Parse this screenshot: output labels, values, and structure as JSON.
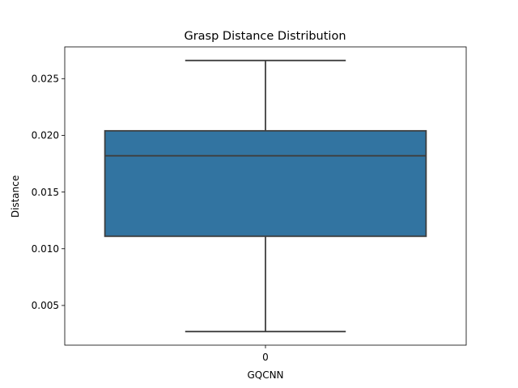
{
  "chart_data": {
    "type": "box",
    "title": "Grasp Distance Distribution",
    "xlabel": "GQCNN",
    "ylabel": "Distance",
    "categories": [
      "0"
    ],
    "boxes": [
      {
        "category": "0",
        "whisker_low": 0.0027,
        "q1": 0.0111,
        "median": 0.0182,
        "q3": 0.0204,
        "whisker_high": 0.0266
      }
    ],
    "yticks": [
      0.005,
      0.01,
      0.015,
      0.02,
      0.025
    ],
    "ytick_labels": [
      "0.005",
      "0.010",
      "0.015",
      "0.020",
      "0.025"
    ],
    "ylim": [
      0.0015,
      0.0278
    ],
    "grid": false,
    "colors": {
      "box_fill": "#3274a1",
      "line": "#3f3f3f"
    }
  }
}
